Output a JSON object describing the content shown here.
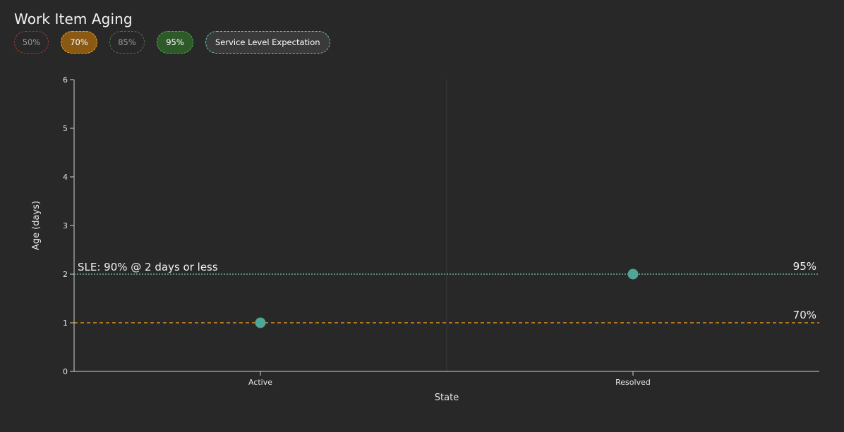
{
  "title": "Work Item Aging",
  "legend": [
    {
      "label": "50%",
      "key": "p50",
      "color": "#d64545",
      "active": false
    },
    {
      "label": "70%",
      "key": "p70",
      "color": "#ffa51c",
      "active": true
    },
    {
      "label": "85%",
      "key": "p85",
      "color": "#4a9a4a",
      "active": false
    },
    {
      "label": "95%",
      "key": "p95",
      "color": "#4fb04f",
      "active": true
    },
    {
      "label": "Service Level Expectation",
      "key": "sle",
      "color": "#6ec9bd",
      "active": true
    }
  ],
  "chart_data": {
    "type": "scatter",
    "xlabel": "State",
    "ylabel": "Age (days)",
    "categories": [
      "Active",
      "Resolved"
    ],
    "ylim": [
      0,
      6
    ],
    "yticks": [
      0,
      1,
      2,
      3,
      4,
      5,
      6
    ],
    "points": [
      {
        "x": "Active",
        "y": 1
      },
      {
        "x": "Resolved",
        "y": 2
      }
    ],
    "point_color": "#4fa596",
    "reference_lines": [
      {
        "value": 2,
        "label": "95%",
        "color": "#6ec9bd",
        "style": "dotted"
      },
      {
        "value": 1,
        "label": "70%",
        "color": "#ffa51c",
        "style": "dashed"
      }
    ],
    "sle_annotation": "SLE: 90% @ 2 days or less",
    "grid": false
  }
}
